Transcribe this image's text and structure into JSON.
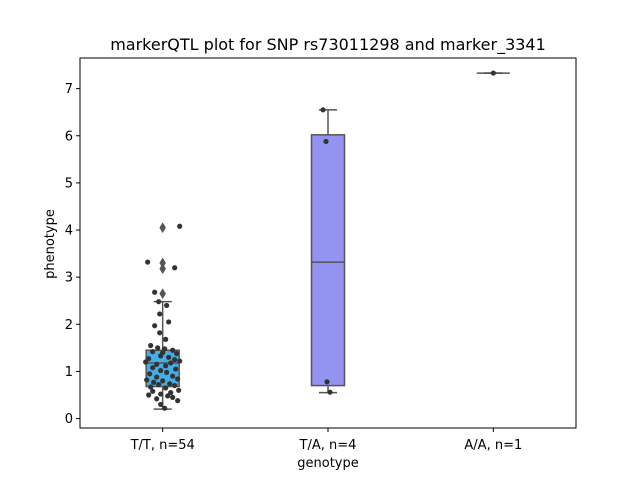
{
  "chart_data": {
    "type": "boxplot",
    "title": "markerQTL plot for SNP rs73011298 and marker_3341",
    "xlabel": "genotype",
    "ylabel": "phenotype",
    "ylim": [
      -0.2,
      7.65
    ],
    "yticks": [
      0,
      1,
      2,
      3,
      4,
      5,
      6,
      7
    ],
    "categories": [
      "T/T, n=54",
      "T/A, n=4",
      "A/A, n=1"
    ],
    "box_colors": [
      "#45aee6",
      "#9393f2",
      "#9393f2"
    ],
    "line_color": "#555555",
    "point_color": "#333333",
    "grid": false,
    "groups": [
      {
        "category": "T/T, n=54",
        "box": {
          "whisker_low": 0.2,
          "q1": 0.68,
          "median": 1.18,
          "q3": 1.45,
          "whisker_high": 2.48
        },
        "outliers": [
          2.65,
          3.18,
          3.3,
          4.05
        ],
        "points": [
          {
            "offset": -0.15,
            "value": 3.32
          },
          {
            "offset": 0.12,
            "value": 3.2
          },
          {
            "offset": 0.17,
            "value": 4.08
          },
          {
            "offset": -0.08,
            "value": 2.68
          },
          {
            "offset": -0.04,
            "value": 2.48
          },
          {
            "offset": 0.04,
            "value": 2.4
          },
          {
            "offset": -0.03,
            "value": 2.22
          },
          {
            "offset": 0.06,
            "value": 2.05
          },
          {
            "offset": -0.08,
            "value": 1.97
          },
          {
            "offset": -0.03,
            "value": 1.82
          },
          {
            "offset": 0.03,
            "value": 1.68
          },
          {
            "offset": -0.12,
            "value": 1.55
          },
          {
            "offset": -0.05,
            "value": 1.5
          },
          {
            "offset": 0.02,
            "value": 1.48
          },
          {
            "offset": 0.1,
            "value": 1.45
          },
          {
            "offset": -0.1,
            "value": 1.42
          },
          {
            "offset": 0.14,
            "value": 1.38
          },
          {
            "offset": -0.02,
            "value": 1.33
          },
          {
            "offset": 0.06,
            "value": 1.3
          },
          {
            "offset": -0.14,
            "value": 1.27
          },
          {
            "offset": 0.12,
            "value": 1.25
          },
          {
            "offset": 0.17,
            "value": 1.22
          },
          {
            "offset": -0.17,
            "value": 1.2
          },
          {
            "offset": 0.08,
            "value": 1.18
          },
          {
            "offset": -0.06,
            "value": 1.15
          },
          {
            "offset": 0.03,
            "value": 1.12
          },
          {
            "offset": -0.1,
            "value": 1.08
          },
          {
            "offset": 0.13,
            "value": 1.05
          },
          {
            "offset": -0.02,
            "value": 1.02
          },
          {
            "offset": 0.04,
            "value": 0.98
          },
          {
            "offset": -0.13,
            "value": 0.95
          },
          {
            "offset": 0.1,
            "value": 0.9
          },
          {
            "offset": -0.06,
            "value": 0.88
          },
          {
            "offset": 0.15,
            "value": 0.84
          },
          {
            "offset": -0.16,
            "value": 0.82
          },
          {
            "offset": 0.0,
            "value": 0.8
          },
          {
            "offset": -0.09,
            "value": 0.77
          },
          {
            "offset": 0.07,
            "value": 0.74
          },
          {
            "offset": -0.04,
            "value": 0.72
          },
          {
            "offset": 0.12,
            "value": 0.7
          },
          {
            "offset": -0.12,
            "value": 0.67
          },
          {
            "offset": 0.03,
            "value": 0.65
          },
          {
            "offset": 0.16,
            "value": 0.6
          },
          {
            "offset": -0.1,
            "value": 0.58
          },
          {
            "offset": 0.08,
            "value": 0.55
          },
          {
            "offset": -0.02,
            "value": 0.52
          },
          {
            "offset": -0.14,
            "value": 0.5
          },
          {
            "offset": 0.05,
            "value": 0.48
          },
          {
            "offset": 0.1,
            "value": 0.45
          },
          {
            "offset": -0.06,
            "value": 0.42
          },
          {
            "offset": 0.15,
            "value": 0.38
          },
          {
            "offset": -0.02,
            "value": 0.3
          },
          {
            "offset": 0.02,
            "value": 0.22
          },
          {
            "offset": 0.0,
            "value": 1.4
          }
        ]
      },
      {
        "category": "T/A, n=4",
        "box": {
          "whisker_low": 0.55,
          "q1": 0.7,
          "median": 3.32,
          "q3": 6.02,
          "whisker_high": 6.55
        },
        "outliers": [],
        "points": [
          {
            "offset": -0.05,
            "value": 6.55
          },
          {
            "offset": -0.02,
            "value": 5.88
          },
          {
            "offset": -0.01,
            "value": 0.78
          },
          {
            "offset": 0.02,
            "value": 0.56
          }
        ]
      },
      {
        "category": "A/A, n=1",
        "box": {
          "whisker_low": 7.33,
          "q1": 7.33,
          "median": 7.33,
          "q3": 7.33,
          "whisker_high": 7.33
        },
        "outliers": [],
        "points": [
          {
            "offset": 0.0,
            "value": 7.33
          }
        ]
      }
    ]
  }
}
